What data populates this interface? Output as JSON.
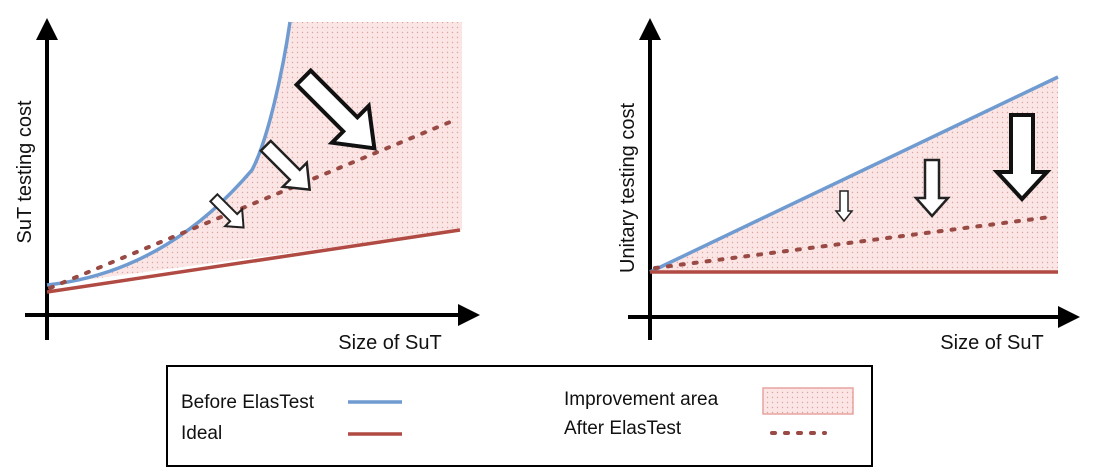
{
  "left_chart": {
    "y_axis_label": "SuT testing cost",
    "x_axis_label": "Size of SuT"
  },
  "right_chart": {
    "y_axis_label": "Unitary testing cost",
    "x_axis_label": "Size of SuT"
  },
  "legend": {
    "before": "Before ElasTest",
    "ideal": "Ideal",
    "improvement": "Improvement area",
    "after": "After ElasTest"
  },
  "colors": {
    "before": "#6f9bd1",
    "ideal": "#b04a42",
    "after": "#9a4a44",
    "improvement_fill": "#f9e3e2",
    "improvement_border": "#e8a4a0"
  }
}
